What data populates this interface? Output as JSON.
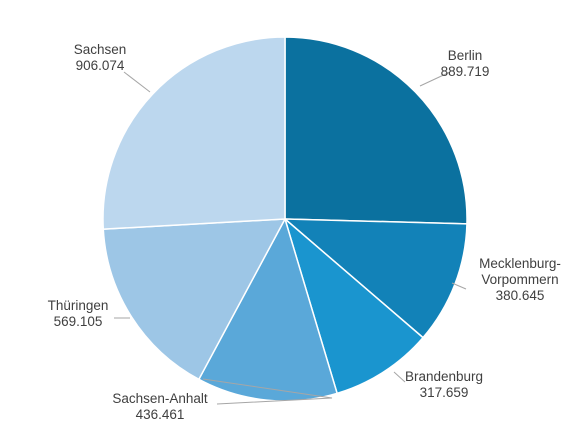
{
  "chart_data": {
    "type": "pie",
    "title": "",
    "start_angle_deg": 0,
    "direction": "clockwise",
    "slices": [
      {
        "label": "Berlin",
        "value": 889719,
        "display_value": "889.719",
        "color": "#0b719f"
      },
      {
        "label": "Mecklenburg-\nVorpommern",
        "value": 380645,
        "display_value": "380.645",
        "color": "#1282b8"
      },
      {
        "label": "Brandenburg",
        "value": 317659,
        "display_value": "317.659",
        "color": "#1a95cf"
      },
      {
        "label": "Sachsen-Anhalt",
        "value": 436461,
        "display_value": "436.461",
        "color": "#5aa8d9"
      },
      {
        "label": "Thüringen",
        "value": 569105,
        "display_value": "569.105",
        "color": "#9dc6e6"
      },
      {
        "label": "Sachsen",
        "value": 906074,
        "display_value": "906.074",
        "color": "#bcd7ee"
      }
    ]
  }
}
